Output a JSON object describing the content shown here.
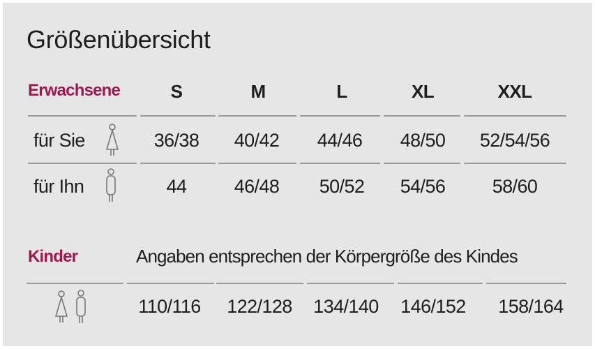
{
  "title": "Größenübersicht",
  "adults": {
    "label": "Erwachsene",
    "sizes": [
      "S",
      "M",
      "L",
      "XL",
      "XXL"
    ],
    "rows": [
      {
        "label": "für Sie",
        "icon": "female-figure-icon",
        "values": [
          "36/38",
          "40/42",
          "44/46",
          "48/50",
          "52/54/56"
        ]
      },
      {
        "label": "für Ihn",
        "icon": "male-figure-icon",
        "values": [
          "44",
          "46/48",
          "50/52",
          "54/56",
          "58/60"
        ]
      }
    ]
  },
  "children": {
    "label": "Kinder",
    "note": "Angaben entsprechen der Körpergröße des Kindes",
    "icons": [
      "female-figure-icon",
      "male-figure-icon"
    ],
    "values": [
      "110/116",
      "122/128",
      "134/140",
      "146/152",
      "158/164"
    ]
  },
  "colors": {
    "accent": "#9b1b4f",
    "background": "#e6e6e6",
    "rule": "#9a9a9a"
  }
}
